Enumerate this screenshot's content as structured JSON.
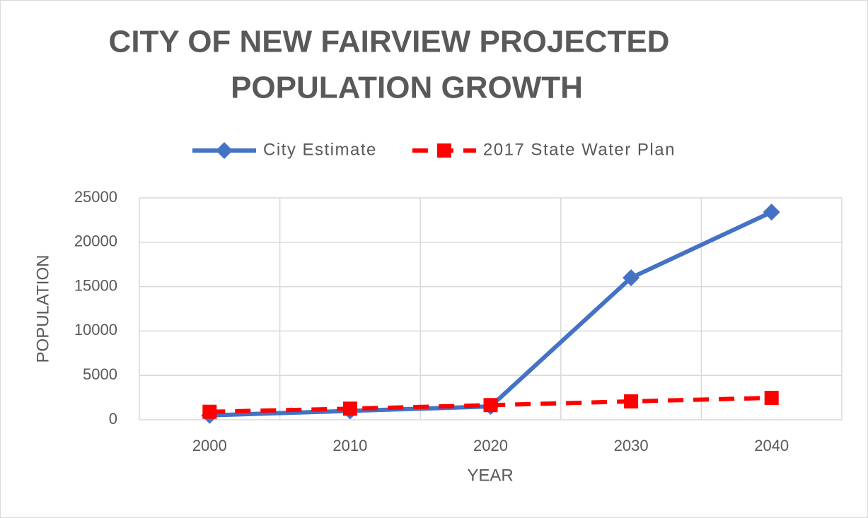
{
  "chart_data": {
    "type": "line",
    "title": [
      "CITY OF NEW FAIRVIEW PROJECTED",
      "POPULATION GROWTH"
    ],
    "x_label": "YEAR",
    "y_label": "POPULATION",
    "categories": [
      "2000",
      "2010",
      "2020",
      "2030",
      "2040"
    ],
    "series": [
      {
        "name": "City Estimate",
        "color": "#4472c4",
        "marker": "diamond",
        "line_style": "solid",
        "values": [
          500,
          1000,
          1500,
          16000,
          23400
        ]
      },
      {
        "name": "2017 State Water Plan",
        "color": "#ff0000",
        "marker": "square",
        "line_style": "dashed",
        "values": [
          900,
          1250,
          1650,
          2070,
          2470
        ]
      }
    ],
    "ylim": [
      0,
      25000
    ],
    "yticks": [
      0,
      5000,
      10000,
      15000,
      20000,
      25000
    ],
    "grid": true,
    "legend": "top"
  }
}
